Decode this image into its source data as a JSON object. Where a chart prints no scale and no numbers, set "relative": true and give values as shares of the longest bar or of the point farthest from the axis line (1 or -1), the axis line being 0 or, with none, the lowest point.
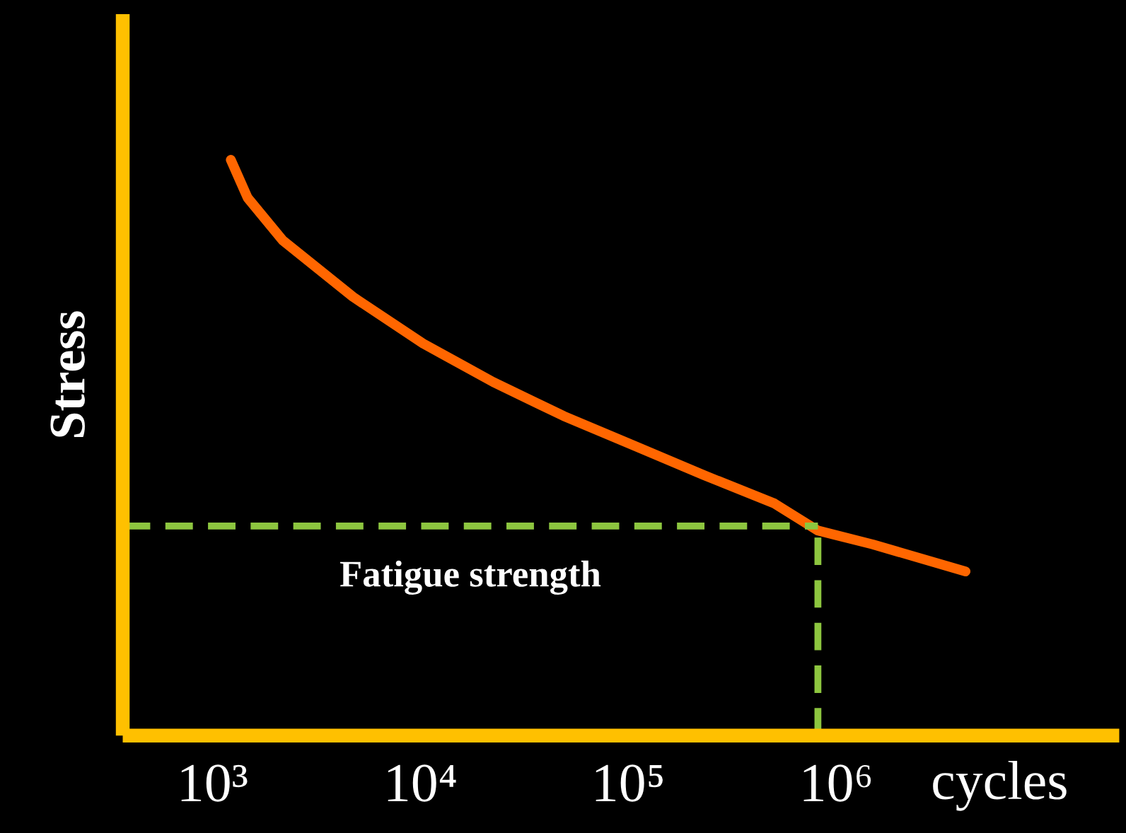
{
  "chart_data": {
    "type": "line",
    "relative": true,
    "log": "x",
    "xlabel": "cycles",
    "ylabel": "Stress",
    "xlim": [
      370,
      23000000
    ],
    "xticks": [
      {
        "value": 1000,
        "label": "10³"
      },
      {
        "value": 10000,
        "label": "10⁴"
      },
      {
        "value": 100000,
        "label": "10⁵"
      },
      {
        "value": 1000000,
        "label": "10⁶"
      }
    ],
    "grid": false,
    "series": [
      {
        "color": "#ff6600",
        "x": [
          1225,
          1476,
          2178,
          4740,
          10300,
          22400,
          48900,
          106000,
          232000,
          505000,
          817000,
          1500000,
          4190000
        ],
        "values": [
          1.0,
          0.934,
          0.86,
          0.762,
          0.681,
          0.614,
          0.555,
          0.504,
          0.452,
          0.403,
          0.356,
          0.332,
          0.285
        ]
      }
    ],
    "ref_lines": [
      {
        "axis": "y",
        "value": 0.364,
        "label": "Fatigue strength",
        "color": "#8dc63f",
        "line_style": "dashed"
      },
      {
        "axis": "x",
        "value": 817000,
        "color": "#8dc63f",
        "line_style": "dashed"
      }
    ]
  }
}
